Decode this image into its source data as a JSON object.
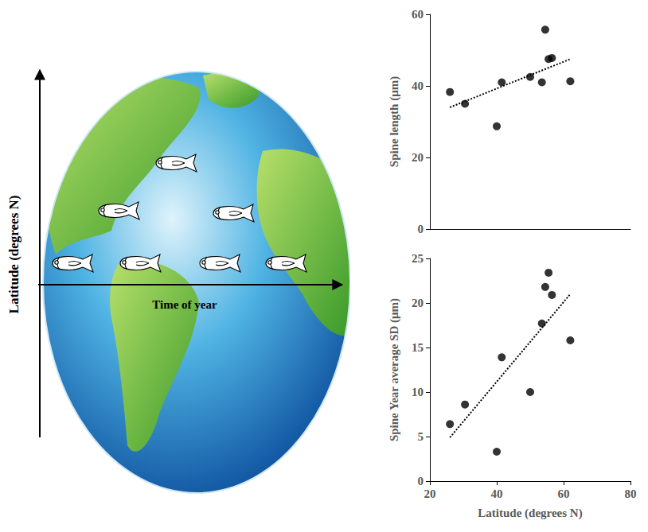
{
  "diagram": {
    "y_axis_label": "Latitude (degrees N)",
    "x_axis_label": "Time of year"
  },
  "chart_data": [
    {
      "type": "scatter",
      "y_label": "Spine length (μm)",
      "x": [
        26,
        30.5,
        40,
        41.5,
        50,
        53.5,
        54.5,
        55.5,
        56.5,
        62
      ],
      "values": [
        38.3,
        35,
        28.7,
        41,
        42.5,
        41,
        55.7,
        47.5,
        47.8,
        41.3
      ],
      "color": "#000000",
      "marker": "circle",
      "trendline": {
        "x": [
          26,
          62
        ],
        "values": [
          34,
          47.5
        ],
        "line_style": "dotted"
      },
      "xlim": [
        20,
        80
      ],
      "xticks": [
        20,
        40,
        60,
        80
      ],
      "ylim": [
        0,
        60
      ],
      "yticks": [
        0,
        20,
        40,
        60
      ],
      "grid": false,
      "tick_labels": "y"
    },
    {
      "type": "scatter",
      "x_label": "Latitude (degrees N)",
      "y_label": "Spine Year average SD (μm)",
      "x": [
        26,
        30.5,
        40,
        41.5,
        50,
        53.5,
        54.5,
        55.5,
        56.5,
        62
      ],
      "values": [
        6.4,
        8.6,
        3.3,
        13.9,
        10,
        17.7,
        21.8,
        23.4,
        20.9,
        15.8
      ],
      "color": "#000000",
      "marker": "circle",
      "trendline": {
        "x": [
          26,
          62
        ],
        "values": [
          4.9,
          21
        ],
        "line_style": "dotted"
      },
      "xlim": [
        20,
        80
      ],
      "xticks": [
        20,
        40,
        60,
        80
      ],
      "ylim": [
        0,
        25
      ],
      "yticks": [
        0,
        5,
        10,
        15,
        20,
        25
      ],
      "grid": false,
      "tick_labels": true
    }
  ]
}
